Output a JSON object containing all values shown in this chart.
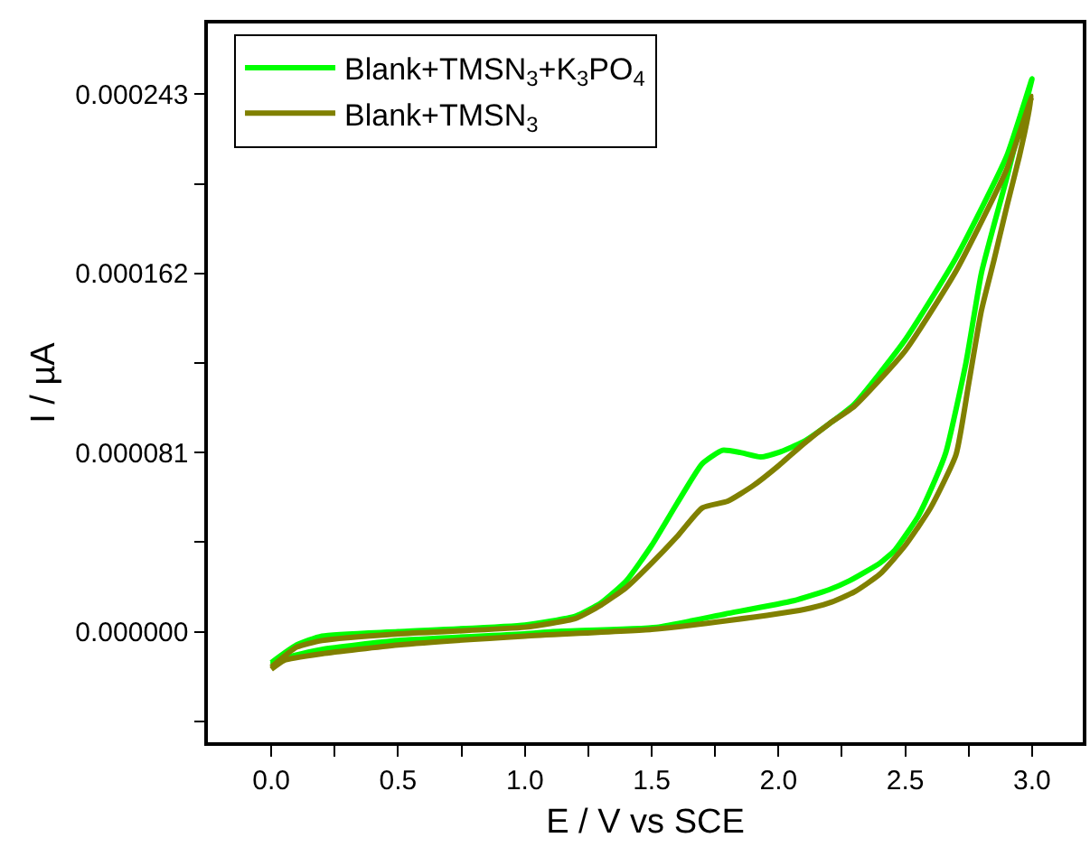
{
  "chart_data": {
    "type": "line",
    "xlabel": "E / V vs SCE",
    "ylabel": "I / µA",
    "xlim": [
      -0.25,
      3.2
    ],
    "ylim": [
      -5e-05,
      0.000275
    ],
    "xticks": [
      {
        "value": 0,
        "label": "0.0"
      },
      {
        "value": 0.25,
        "label": null
      },
      {
        "value": 0.5,
        "label": "0.5"
      },
      {
        "value": 0.75,
        "label": null
      },
      {
        "value": 1,
        "label": "1.0"
      },
      {
        "value": 1.25,
        "label": null
      },
      {
        "value": 1.5,
        "label": "1.5"
      },
      {
        "value": 1.75,
        "label": null
      },
      {
        "value": 2,
        "label": "2.0"
      },
      {
        "value": 2.25,
        "label": null
      },
      {
        "value": 2.5,
        "label": "2.5"
      },
      {
        "value": 2.75,
        "label": null
      },
      {
        "value": 3,
        "label": "3.0"
      }
    ],
    "yticks": [
      {
        "value": -4.05e-05,
        "label": null
      },
      {
        "value": 0,
        "label": "0.000000"
      },
      {
        "value": 4.05e-05,
        "label": null
      },
      {
        "value": 8.1e-05,
        "label": "0.000081"
      },
      {
        "value": 0.0001215,
        "label": null
      },
      {
        "value": 0.000162,
        "label": "0.000162"
      },
      {
        "value": 0.0002025,
        "label": null
      },
      {
        "value": 0.000243,
        "label": "0.000243"
      }
    ],
    "legend": "top left",
    "marker": "none",
    "line_style": "solid",
    "series": [
      {
        "name": "Blank+TMSN$_{3}$+K$_{3}$PO$_{4}$",
        "color": "#00ff00",
        "x": [
          0,
          0.1,
          0.2,
          0.5,
          1.0,
          1.2,
          1.3,
          1.4,
          1.5,
          1.6,
          1.7,
          1.78,
          1.85,
          1.93,
          2.0,
          2.1,
          2.2,
          2.3,
          2.5,
          2.7,
          2.9,
          3.0,
          2.95,
          2.9,
          2.85,
          2.8,
          2.74,
          2.66,
          2.6,
          2.55,
          2.46,
          2.4,
          2.28,
          2.2,
          2.06,
          1.79,
          1.52,
          1.11,
          1.0,
          0.5,
          0.2,
          0.05,
          0
        ],
        "values": [
          -1.4e-05,
          -6e-06,
          -2e-06,
          0.0,
          3e-06,
          7e-06,
          1.3e-05,
          2.3e-05,
          3.9e-05,
          5.8e-05,
          7.6e-05,
          8.2e-05,
          8.1e-05,
          7.9e-05,
          8.1e-05,
          8.6e-05,
          9.4e-05,
          0.000103,
          0.000132,
          0.000169,
          0.000215,
          0.00025,
          0.000228,
          0.000205,
          0.000184,
          0.000162,
          0.000122,
          8.1e-05,
          6.4e-05,
          5.2e-05,
          3.7e-05,
          3.1e-05,
          2.3e-05,
          1.9e-05,
          1.4e-05,
          8e-06,
          2e-06,
          0.0,
          -1e-06,
          -4e-06,
          -8e-06,
          -1.2e-05,
          -1.5e-05
        ]
      },
      {
        "name": "Blank+TMSN$_{3}$",
        "color": "#808000",
        "x": [
          0,
          0.1,
          0.2,
          0.5,
          1.0,
          1.2,
          1.3,
          1.4,
          1.5,
          1.6,
          1.7,
          1.8,
          1.9,
          2.0,
          2.1,
          2.2,
          2.3,
          2.5,
          2.7,
          2.9,
          3.0,
          2.95,
          2.9,
          2.85,
          2.8,
          2.75,
          2.7,
          2.6,
          2.5,
          2.4,
          2.3,
          2.2,
          2.1,
          1.8,
          1.5,
          1.0,
          0.5,
          0.2,
          0.05,
          0
        ],
        "values": [
          -1.6e-05,
          -7e-06,
          -4e-06,
          -1e-06,
          2e-06,
          6e-06,
          1.2e-05,
          2e-05,
          3.1e-05,
          4.3e-05,
          5.6e-05,
          5.9e-05,
          6.6e-05,
          7.5e-05,
          8.5e-05,
          9.4e-05,
          0.000102,
          0.000127,
          0.000163,
          0.000209,
          0.000242,
          0.000215,
          0.000192,
          0.000168,
          0.000145,
          0.000112,
          8e-05,
          5.6e-05,
          3.9e-05,
          2.6e-05,
          1.8e-05,
          1.3e-05,
          1e-05,
          5e-06,
          1e-06,
          -2e-06,
          -6e-06,
          -1e-05,
          -1.3e-05,
          -1.7e-05
        ]
      }
    ]
  }
}
